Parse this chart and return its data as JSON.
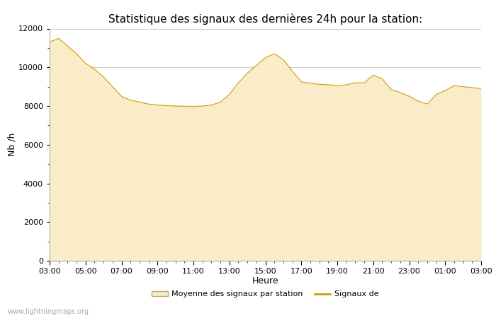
{
  "title": "Statistique des signaux des dernières 24h pour la station:",
  "xlabel": "Heure",
  "ylabel": "Nb /h",
  "x_ticks": [
    "03:00",
    "05:00",
    "07:00",
    "09:00",
    "11:00",
    "13:00",
    "15:00",
    "17:00",
    "19:00",
    "21:00",
    "23:00",
    "01:00",
    "03:00"
  ],
  "ylim": [
    0,
    12000
  ],
  "yticks": [
    0,
    2000,
    4000,
    6000,
    8000,
    10000,
    12000
  ],
  "fill_color": "#FAECC8",
  "fill_edge_color": "#D4C068",
  "line_color": "#C8A000",
  "background_color": "#ffffff",
  "grid_color": "#cccccc",
  "title_fontsize": 11,
  "axis_label_fontsize": 9,
  "tick_fontsize": 8,
  "legend_label_fill": "Moyenne des signaux par station",
  "legend_label_line": "Signaux de",
  "watermark": "www.lightningmaps.org",
  "x_values": [
    0,
    0.5,
    1,
    1.5,
    2,
    2.5,
    3,
    3.5,
    4,
    4.5,
    5,
    5.5,
    6,
    6.5,
    7,
    7.5,
    8,
    8.5,
    9,
    9.5,
    10,
    10.5,
    11,
    11.5,
    12,
    12.5,
    13,
    13.5,
    14,
    14.5,
    15,
    15.5,
    16,
    16.5,
    17,
    17.5,
    18,
    18.5,
    19,
    19.5,
    20,
    20.5,
    21,
    21.5,
    22,
    22.5,
    23,
    23.5,
    24
  ],
  "y_values": [
    11300,
    11500,
    11100,
    10700,
    10200,
    9900,
    9500,
    9000,
    8500,
    8300,
    8200,
    8100,
    8050,
    8020,
    8000,
    7990,
    7980,
    8000,
    8050,
    8200,
    8600,
    9200,
    9700,
    10100,
    10500,
    10700,
    10400,
    9800,
    9250,
    9180,
    9120,
    9100,
    9050,
    9100,
    9200,
    9200,
    9600,
    9400,
    8850,
    8700,
    8500,
    8250,
    8100,
    8600,
    8800,
    9050,
    9000,
    8950,
    8900
  ]
}
